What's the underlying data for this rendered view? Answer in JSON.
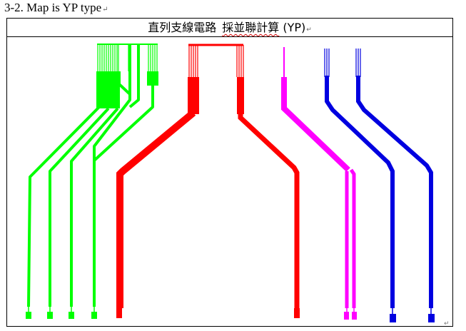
{
  "document": {
    "heading": "3-2. Map is YP type",
    "paragraph_mark": "↵"
  },
  "figure": {
    "title_part1": "直列支線電路",
    "title_part2": "採並聯計算",
    "title_part3": "(YP)",
    "paragraph_mark": "↵"
  },
  "colors": {
    "green": "#00ff00",
    "red": "#ff0000",
    "magenta": "#ff00ff",
    "blue": "#0000e0",
    "frame": "#000000"
  }
}
